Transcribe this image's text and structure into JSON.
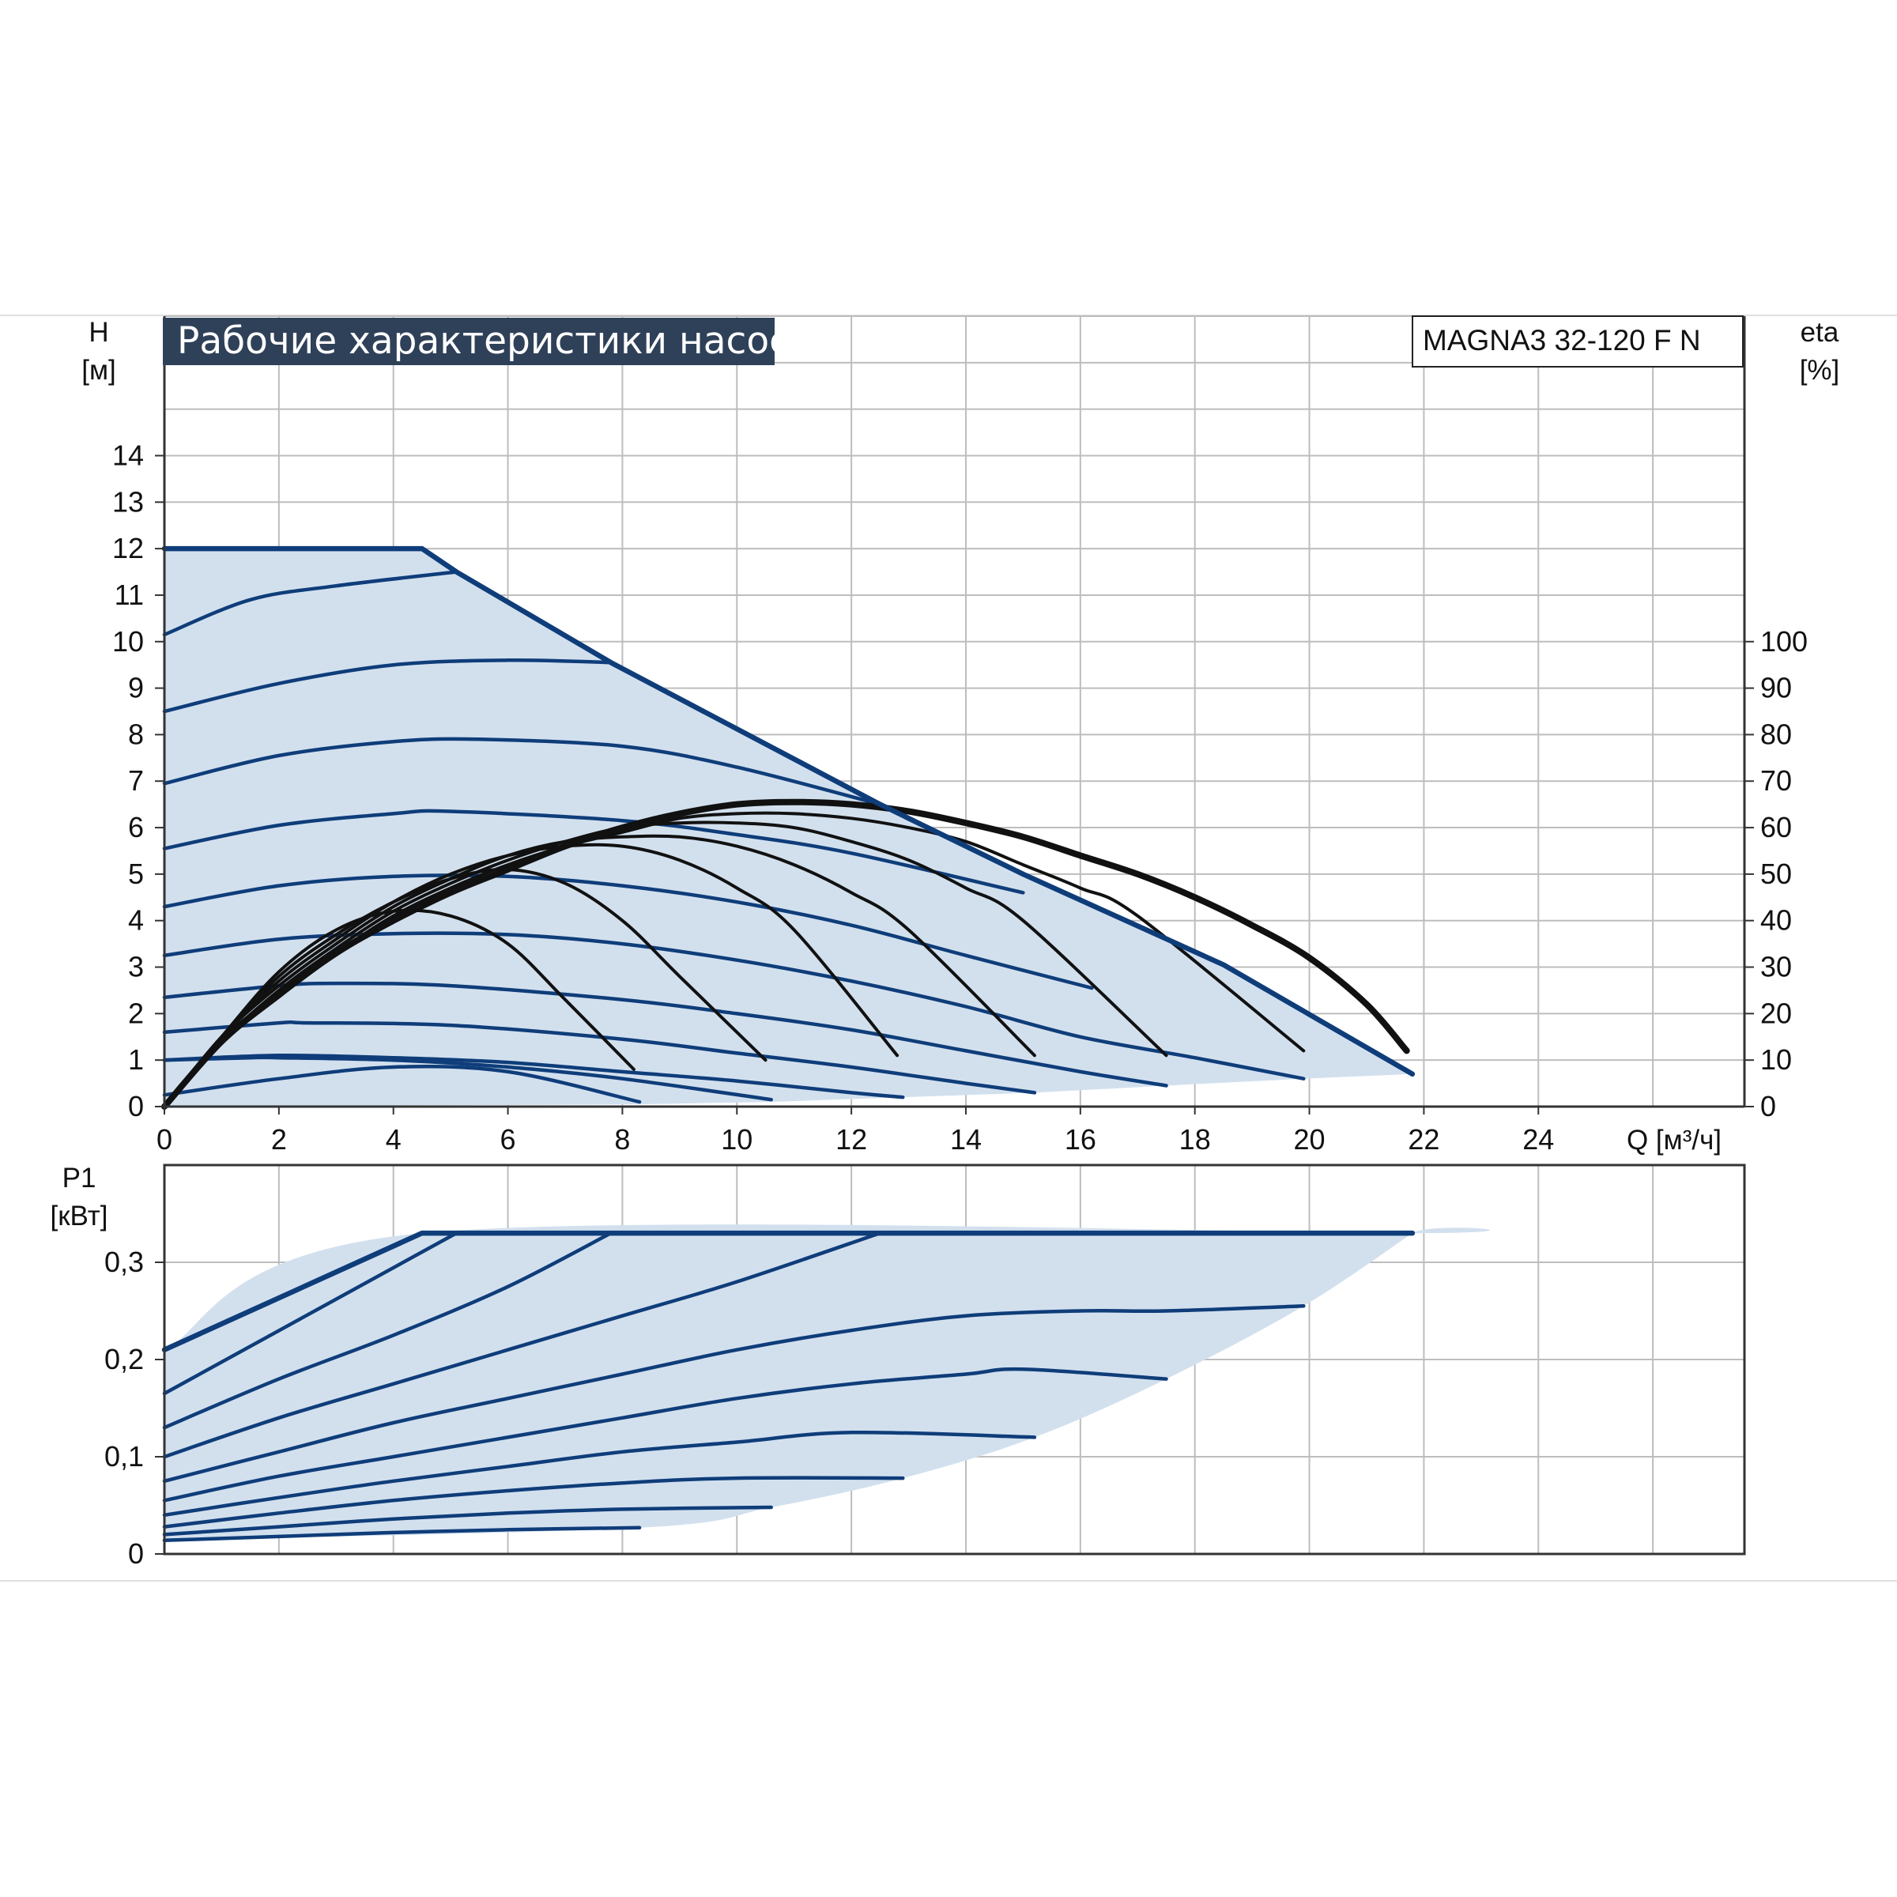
{
  "chart_data": [
    {
      "type": "line",
      "title": "Рабочие характеристики насоса",
      "model": "MAGNA3 32-120 F N",
      "xlabel": "Q [м³/ч]",
      "ylabel": [
        "H",
        "[м]"
      ],
      "y2label": [
        "eta",
        "[%]"
      ],
      "xlim": [
        0,
        27.6
      ],
      "ylim": [
        0,
        17
      ],
      "y2lim": [
        0,
        170
      ],
      "x_ticks": [
        "0",
        "2",
        "4",
        "6",
        "8",
        "10",
        "12",
        "14",
        "16",
        "18",
        "20",
        "22",
        "24"
      ],
      "y_ticks": [
        "0",
        "1",
        "2",
        "3",
        "4",
        "5",
        "6",
        "7",
        "8",
        "9",
        "10",
        "11",
        "12",
        "13",
        "14"
      ],
      "y2_ticks": [
        "0",
        "10",
        "20",
        "30",
        "40",
        "50",
        "60",
        "70",
        "80",
        "90",
        "100"
      ],
      "max_curve": [
        [
          0,
          12
        ],
        [
          4.5,
          12
        ],
        [
          5.1,
          11.5
        ],
        [
          7.8,
          9.55
        ],
        [
          12.5,
          6.5
        ],
        [
          15,
          5
        ],
        [
          18.5,
          3.05
        ],
        [
          21.8,
          0.7
        ]
      ],
      "speed_curves": [
        {
          "q": [
            0,
            1.5,
            3,
            5.1
          ],
          "h": [
            10.15,
            10.9,
            11.2,
            11.5
          ]
        },
        {
          "q": [
            0,
            2,
            4,
            6,
            7.8
          ],
          "h": [
            8.5,
            9.1,
            9.5,
            9.6,
            9.55
          ]
        },
        {
          "q": [
            0,
            2,
            4,
            5.5,
            8,
            10,
            12.5
          ],
          "h": [
            6.95,
            7.55,
            7.85,
            7.9,
            7.75,
            7.3,
            6.5
          ]
        },
        {
          "q": [
            0,
            2,
            4,
            5,
            8,
            10,
            12,
            15
          ],
          "h": [
            5.55,
            6.05,
            6.3,
            6.35,
            6.15,
            5.85,
            5.45,
            4.6
          ]
        },
        {
          "q": [
            0,
            2,
            4,
            6,
            8,
            10,
            12,
            14,
            16.2
          ],
          "h": [
            4.3,
            4.75,
            4.95,
            4.95,
            4.75,
            4.4,
            3.9,
            3.25,
            2.55
          ]
        },
        {
          "q": [
            0,
            2,
            4,
            6,
            8,
            10,
            12,
            14,
            16,
            18,
            19.9
          ],
          "h": [
            3.25,
            3.6,
            3.72,
            3.7,
            3.5,
            3.15,
            2.7,
            2.15,
            1.5,
            1.05,
            0.6
          ]
        },
        {
          "q": [
            0,
            2,
            3,
            5,
            8,
            10,
            12,
            14,
            16,
            17.5
          ],
          "h": [
            2.35,
            2.6,
            2.65,
            2.6,
            2.3,
            2.0,
            1.65,
            1.2,
            0.75,
            0.45
          ]
        },
        {
          "q": [
            0,
            2,
            2.5,
            5,
            8,
            10,
            12,
            14,
            15.2
          ],
          "h": [
            1.6,
            1.8,
            1.8,
            1.75,
            1.45,
            1.15,
            0.85,
            0.5,
            0.3
          ]
        },
        {
          "q": [
            0,
            2,
            4,
            6,
            8,
            10,
            12,
            12.9
          ],
          "h": [
            1.0,
            1.1,
            1.05,
            0.95,
            0.75,
            0.55,
            0.3,
            0.2
          ]
        },
        {
          "q": [
            0,
            1.5,
            2,
            4,
            6,
            8,
            10.6
          ],
          "h": [
            1.0,
            1.05,
            1.05,
            1.0,
            0.85,
            0.6,
            0.15
          ]
        },
        {
          "q": [
            0,
            2,
            4,
            6,
            8.3
          ],
          "h": [
            0.25,
            0.6,
            0.85,
            0.75,
            0.1
          ]
        }
      ],
      "region_lower_edge": [
        [
          8.3,
          0.05
        ],
        [
          10.6,
          0.1
        ],
        [
          12.9,
          0.2
        ],
        [
          15.2,
          0.3
        ],
        [
          17.5,
          0.45
        ],
        [
          19.9,
          0.6
        ],
        [
          21.8,
          0.7
        ]
      ],
      "eta_curves": [
        {
          "q": [
            0,
            1,
            2,
            3,
            4,
            5,
            6,
            7,
            8.2
          ],
          "eta": [
            0,
            15,
            29,
            38,
            42,
            41,
            35,
            23,
            8
          ]
        },
        {
          "q": [
            0,
            1,
            2,
            3,
            4,
            5,
            6,
            7,
            8,
            9,
            10.5
          ],
          "eta": [
            0,
            15,
            28,
            37,
            44,
            49,
            51,
            48,
            40,
            28,
            10
          ]
        },
        {
          "q": [
            0,
            1,
            2,
            3,
            4,
            5,
            6,
            7,
            8,
            9,
            10,
            11,
            12.8
          ],
          "eta": [
            0,
            15,
            27,
            36,
            44,
            50,
            54,
            56,
            56,
            53,
            47,
            38,
            11
          ]
        },
        {
          "q": [
            0,
            1,
            2,
            3,
            4,
            5,
            6,
            7,
            8,
            9,
            10,
            11,
            12,
            13,
            15.2
          ],
          "eta": [
            0,
            15,
            26,
            35,
            43,
            49,
            54,
            57,
            58,
            58,
            56,
            52,
            46,
            38,
            11
          ]
        },
        {
          "q": [
            0,
            1,
            2,
            3,
            4,
            5,
            6,
            7,
            8,
            9,
            10,
            11,
            12,
            13,
            14,
            15,
            17.5
          ],
          "eta": [
            0,
            14,
            25,
            34,
            42,
            48,
            53,
            57,
            60,
            61,
            61,
            60,
            57,
            53,
            47,
            40,
            11
          ]
        },
        {
          "q": [
            0,
            1,
            2,
            3,
            4,
            5,
            6,
            7,
            8,
            9,
            10,
            11,
            12,
            13,
            14,
            15,
            16,
            17,
            19.9
          ],
          "eta": [
            0,
            14,
            24,
            33,
            41,
            47,
            52,
            56,
            59,
            62,
            63,
            63,
            62,
            60,
            57,
            52,
            47,
            41,
            12
          ]
        },
        {
          "q": [
            0,
            1,
            2,
            3,
            4,
            5,
            6,
            7,
            8,
            9,
            10,
            11,
            12,
            13,
            14,
            15,
            16,
            17,
            18,
            19,
            20,
            21,
            21.7
          ],
          "eta": [
            0,
            14,
            24,
            33,
            40,
            46,
            51,
            56,
            60,
            63,
            65,
            65.5,
            65,
            63.5,
            61,
            58,
            54,
            50,
            45,
            39,
            32,
            22,
            12
          ]
        }
      ]
    },
    {
      "type": "line",
      "ylabel": [
        "P1",
        "[кВт]"
      ],
      "xlim": [
        0,
        27.6
      ],
      "ylim": [
        0,
        0.4
      ],
      "y_ticks": [
        "0",
        "0,1",
        "0,2",
        "0,3"
      ],
      "max_curve": [
        [
          0,
          0.21
        ],
        [
          4.5,
          0.33
        ],
        [
          21.8,
          0.33
        ]
      ],
      "power_curves": [
        {
          "q": [
            0,
            5.1
          ],
          "p": [
            0.165,
            0.33
          ]
        },
        {
          "q": [
            0,
            2,
            4,
            6,
            7.8
          ],
          "p": [
            0.13,
            0.18,
            0.225,
            0.275,
            0.33
          ]
        },
        {
          "q": [
            0,
            2,
            4,
            6,
            8,
            10,
            12.5
          ],
          "p": [
            0.1,
            0.14,
            0.175,
            0.21,
            0.245,
            0.28,
            0.33
          ]
        },
        {
          "q": [
            0,
            2,
            4,
            6,
            8,
            10,
            12,
            14,
            16,
            17.5,
            19.9
          ],
          "p": [
            0.075,
            0.105,
            0.135,
            0.16,
            0.185,
            0.21,
            0.23,
            0.245,
            0.25,
            0.25,
            0.255
          ]
        },
        {
          "q": [
            0,
            2,
            4,
            6,
            8,
            10,
            12,
            14,
            15,
            17.5
          ],
          "p": [
            0.055,
            0.08,
            0.1,
            0.12,
            0.14,
            0.16,
            0.175,
            0.185,
            0.19,
            0.18
          ]
        },
        {
          "q": [
            0,
            2,
            4,
            6,
            8,
            10,
            12,
            15.2
          ],
          "p": [
            0.04,
            0.058,
            0.075,
            0.09,
            0.105,
            0.115,
            0.125,
            0.12
          ]
        },
        {
          "q": [
            0,
            2,
            4,
            6,
            8,
            10,
            12.9
          ],
          "p": [
            0.028,
            0.042,
            0.055,
            0.065,
            0.073,
            0.078,
            0.078
          ]
        },
        {
          "q": [
            0,
            2,
            4,
            6,
            8,
            10.6
          ],
          "p": [
            0.02,
            0.028,
            0.036,
            0.042,
            0.046,
            0.048
          ]
        },
        {
          "q": [
            0,
            2,
            4,
            6,
            8.3
          ],
          "p": [
            0.014,
            0.018,
            0.022,
            0.025,
            0.027
          ]
        }
      ],
      "region_lower_edge": [
        [
          8.3,
          0.027
        ],
        [
          10.6,
          0.048
        ],
        [
          12.9,
          0.078
        ],
        [
          15.2,
          0.12
        ],
        [
          17.5,
          0.18
        ],
        [
          19.9,
          0.255
        ],
        [
          21.8,
          0.33
        ]
      ]
    }
  ]
}
